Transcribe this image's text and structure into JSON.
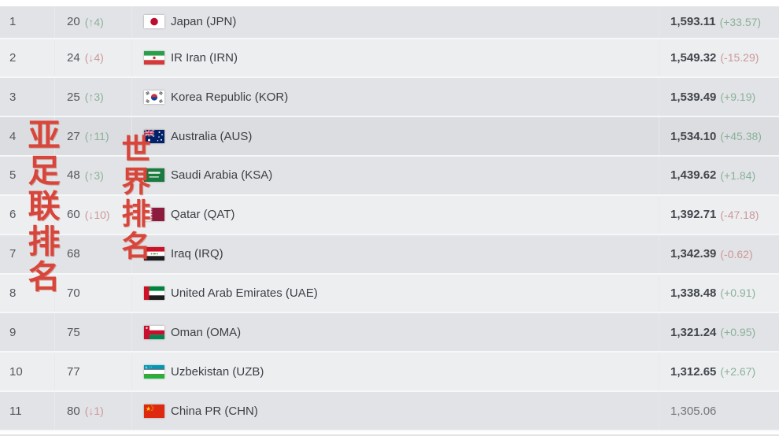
{
  "overlays": {
    "left_vertical_text": "亚足联排名",
    "mid_vertical_text": "世界排名"
  },
  "colors": {
    "trend_up": "#8bb199",
    "trend_down": "#cc989a",
    "overlay_red": "#d8463b",
    "row_odd": "#e2e3e6",
    "row_even": "#edeef0",
    "row_highlighted": "#dcdde0"
  },
  "table": {
    "rows": [
      {
        "confed_rank": "1",
        "world_rank": "20",
        "world_change": "(↑4)",
        "world_trend": "up",
        "team": "Japan (JPN)",
        "code": "JPN",
        "points": "1,593.11",
        "points_change": "(+33.57)",
        "points_trend": "up",
        "highlighted": false
      },
      {
        "confed_rank": "2",
        "world_rank": "24",
        "world_change": "(↓4)",
        "world_trend": "down",
        "team": "IR Iran (IRN)",
        "code": "IRN",
        "points": "1,549.32",
        "points_change": "(-15.29)",
        "points_trend": "down",
        "highlighted": false
      },
      {
        "confed_rank": "3",
        "world_rank": "25",
        "world_change": "(↑3)",
        "world_trend": "up",
        "team": "Korea Republic (KOR)",
        "code": "KOR",
        "points": "1,539.49",
        "points_change": "(+9.19)",
        "points_trend": "up",
        "highlighted": false
      },
      {
        "confed_rank": "4",
        "world_rank": "27",
        "world_change": "(↑11)",
        "world_trend": "up",
        "team": "Australia (AUS)",
        "code": "AUS",
        "points": "1,534.10",
        "points_change": "(+45.38)",
        "points_trend": "up",
        "highlighted": true
      },
      {
        "confed_rank": "5",
        "world_rank": "48",
        "world_change": "(↑3)",
        "world_trend": "up",
        "team": "Saudi Arabia (KSA)",
        "code": "KSA",
        "points": "1,439.62",
        "points_change": "(+1.84)",
        "points_trend": "up",
        "highlighted": false
      },
      {
        "confed_rank": "6",
        "world_rank": "60",
        "world_change": "(↓10)",
        "world_trend": "down",
        "team": "Qatar (QAT)",
        "code": "QAT",
        "points": "1,392.71",
        "points_change": "(-47.18)",
        "points_trend": "down",
        "highlighted": false
      },
      {
        "confed_rank": "7",
        "world_rank": "68",
        "world_change": null,
        "world_trend": null,
        "team": "Iraq (IRQ)",
        "code": "IRQ",
        "points": "1,342.39",
        "points_change": "(-0.62)",
        "points_trend": "down",
        "highlighted": false
      },
      {
        "confed_rank": "8",
        "world_rank": "70",
        "world_change": null,
        "world_trend": null,
        "team": "United Arab Emirates (UAE)",
        "code": "UAE",
        "points": "1,338.48",
        "points_change": "(+0.91)",
        "points_trend": "up",
        "highlighted": false
      },
      {
        "confed_rank": "9",
        "world_rank": "75",
        "world_change": null,
        "world_trend": null,
        "team": "Oman (OMA)",
        "code": "OMA",
        "points": "1,321.24",
        "points_change": "(+0.95)",
        "points_trend": "up",
        "highlighted": false
      },
      {
        "confed_rank": "10",
        "world_rank": "77",
        "world_change": null,
        "world_trend": null,
        "team": "Uzbekistan (UZB)",
        "code": "UZB",
        "points": "1,312.65",
        "points_change": "(+2.67)",
        "points_trend": "up",
        "highlighted": false
      },
      {
        "confed_rank": "11",
        "world_rank": "80",
        "world_change": "(↓1)",
        "world_trend": "down",
        "team": "China PR (CHN)",
        "code": "CHN",
        "points": "1,305.06",
        "points_change": null,
        "points_trend": null,
        "highlighted": false
      }
    ]
  }
}
